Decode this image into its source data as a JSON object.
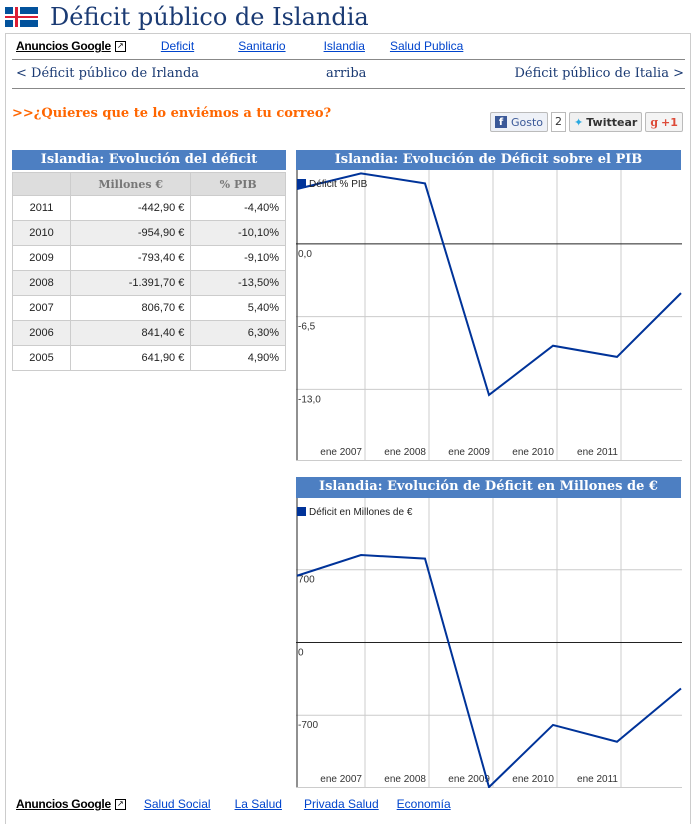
{
  "header": {
    "title": "Déficit público de Islandia",
    "flag_icon": "iceland-flag-icon"
  },
  "ads_top": {
    "label": "Anuncios Google",
    "links": [
      "Deficit",
      "Sanitario",
      "Islandia",
      "Salud Publica"
    ]
  },
  "nav": {
    "prev": "< Déficit público de Irlanda",
    "up": "arriba",
    "next": "Déficit público de Italia >"
  },
  "promo": ">>¿Quieres que te lo enviémos a tu correo?",
  "social": {
    "facebook": "Gosto",
    "count": "2",
    "twitter": "Twittear",
    "gplus": "+1"
  },
  "table": {
    "title": "Islandia: Evolución del déficit",
    "headers": [
      "",
      "Millones €",
      "% PIB"
    ],
    "rows": [
      [
        "2011",
        "-442,90 €",
        "-4,40%"
      ],
      [
        "2010",
        "-954,90 €",
        "-10,10%"
      ],
      [
        "2009",
        "-793,40 €",
        "-9,10%"
      ],
      [
        "2008",
        "-1.391,70 €",
        "-13,50%"
      ],
      [
        "2007",
        "806,70 €",
        "5,40%"
      ],
      [
        "2006",
        "841,40 €",
        "6,30%"
      ],
      [
        "2005",
        "641,90 €",
        "4,90%"
      ]
    ]
  },
  "chart_data": [
    {
      "type": "line",
      "title": "Islandia: Evolución de Déficit sobre el PIB",
      "legend": "Déficit % PIB",
      "x": [
        2005,
        2006,
        2007,
        2008,
        2009,
        2010,
        2011
      ],
      "values": [
        4.9,
        6.3,
        5.4,
        -13.5,
        -9.1,
        -10.1,
        -4.4
      ],
      "yticks": [
        0,
        -6.5,
        -13
      ],
      "ytick_labels": [
        "0,0",
        "-6,5",
        "-13,0"
      ],
      "xtick_labels": [
        "ene 2007",
        "ene 2008",
        "ene 2009",
        "ene 2010",
        "ene 2011"
      ],
      "ylim": [
        -19.4,
        6.6
      ],
      "color": "#003399",
      "legend_position": "top-left"
    },
    {
      "type": "line",
      "title": "Islandia: Evolución de Déficit en Millones de €",
      "legend": "Déficit en Millones de €",
      "x": [
        2005,
        2006,
        2007,
        2008,
        2009,
        2010,
        2011
      ],
      "values": [
        641.9,
        841.4,
        806.7,
        -1391.7,
        -793.4,
        -954.9,
        -442.9
      ],
      "yticks": [
        700,
        0,
        -700
      ],
      "ytick_labels": [
        "700",
        "0",
        "-700"
      ],
      "xtick_labels": [
        "ene 2007",
        "ene 2008",
        "ene 2009",
        "ene 2010",
        "ene 2011"
      ],
      "ylim": [
        -1400,
        1390
      ],
      "color": "#003399",
      "legend_position": "top-left"
    }
  ],
  "ads_bottom": {
    "label": "Anuncios Google",
    "links": [
      "Salud Social",
      "La Salud",
      "Privada Salud",
      "Economía"
    ]
  }
}
